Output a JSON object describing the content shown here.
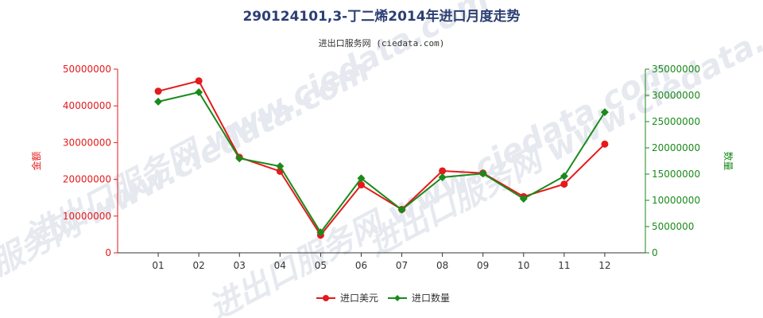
{
  "chart_data": {
    "type": "line",
    "title": "290124101,3-丁二烯2014年进口月度走势",
    "subtitle": "进出口服务网 (ciedata.com)",
    "watermark": "进出口服务网 www.ciedata.com",
    "categories": [
      "01",
      "02",
      "03",
      "04",
      "05",
      "06",
      "07",
      "08",
      "09",
      "10",
      "11",
      "12"
    ],
    "left_axis": {
      "label": "金额",
      "ylim": [
        0,
        50000000
      ],
      "ticks": [
        "0",
        "10000000",
        "20000000",
        "30000000",
        "40000000",
        "50000000"
      ]
    },
    "right_axis": {
      "label": "数量",
      "ylim": [
        0,
        35000000
      ],
      "ticks": [
        "0",
        "5000000",
        "10000000",
        "15000000",
        "20000000",
        "25000000",
        "30000000",
        "35000000"
      ]
    },
    "series": [
      {
        "name": "进口美元",
        "axis": "left",
        "color": "#e41a1c",
        "values": [
          44000000,
          46800000,
          26000000,
          22200000,
          4800000,
          18500000,
          11800000,
          22300000,
          21700000,
          15300000,
          18700000,
          29600000
        ]
      },
      {
        "name": "进口数量",
        "axis": "right",
        "color": "#1a8a1a",
        "values": [
          28800000,
          30600000,
          18000000,
          16500000,
          3900000,
          14200000,
          8200000,
          14400000,
          15100000,
          10300000,
          14600000,
          26800000
        ]
      }
    ],
    "legend_position": "bottom-center",
    "grid": false
  }
}
